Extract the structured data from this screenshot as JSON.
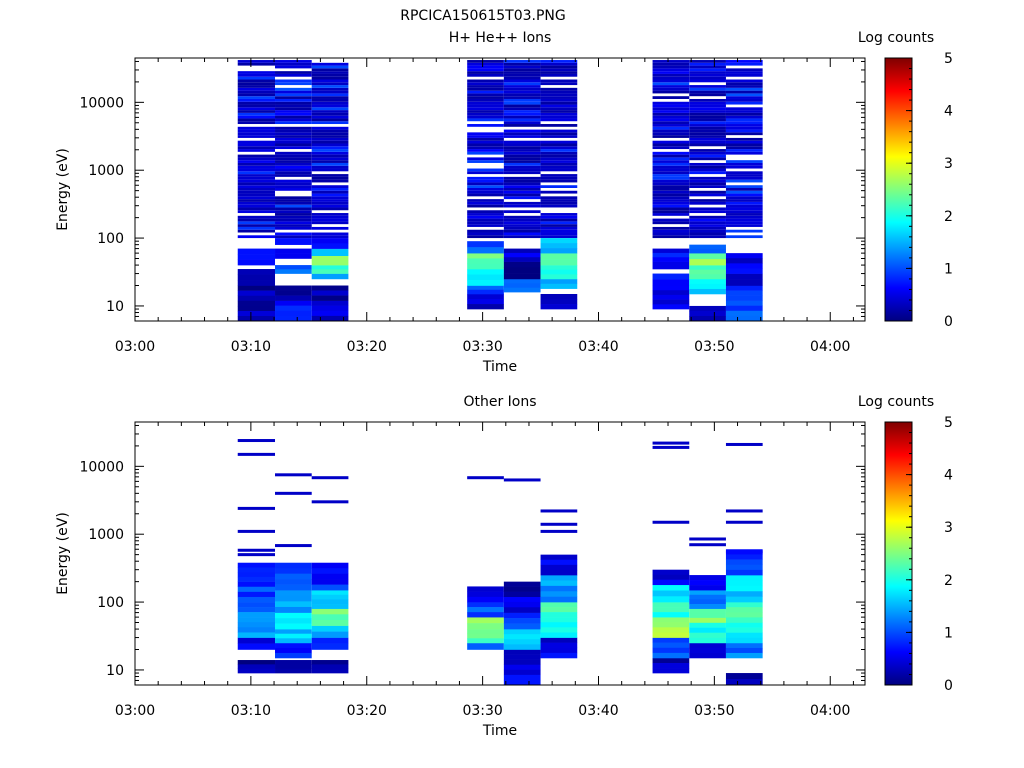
{
  "figure_title": "RPCICA150615T03.PNG",
  "chart_data": [
    {
      "type": "heatmap",
      "title": "H+ He++ Ions",
      "xlabel": "Time",
      "ylabel": "Energy (eV)",
      "yscale": "log",
      "ylim": [
        6,
        45000
      ],
      "xlim": [
        "03:00",
        "04:03"
      ],
      "x_ticks": [
        "03:00",
        "03:10",
        "03:20",
        "03:30",
        "03:40",
        "03:50",
        "04:00"
      ],
      "y_ticks": [
        "10",
        "100",
        "1000",
        "10000"
      ],
      "colorbar": {
        "label": "Log counts",
        "min": 0,
        "max": 5,
        "ticks": [
          "0",
          "1",
          "2",
          "3",
          "4",
          "5"
        ]
      },
      "columns": [
        {
          "t0": "03:08:52",
          "t1": "03:12:05",
          "e_min": 6,
          "e_max": 42000,
          "low": [
            [
              6,
              10,
              0.3
            ],
            [
              10,
              20,
              0.2
            ],
            [
              20,
              35,
              0.4
            ],
            [
              40,
              70,
              0.5
            ]
          ]
        },
        {
          "t0": "03:12:05",
          "t1": "03:15:15",
          "e_min": 6,
          "e_max": 42000,
          "low": [
            [
              6,
              12,
              0.6
            ],
            [
              12,
              20,
              0.2
            ],
            [
              30,
              40,
              1.2
            ],
            [
              50,
              70,
              0.7
            ],
            [
              80,
              100,
              0.6
            ]
          ]
        },
        {
          "t0": "03:15:15",
          "t1": "03:18:25",
          "e_min": 6,
          "e_max": 42000,
          "low": [
            [
              6,
              12,
              0.4
            ],
            [
              12,
              20,
              0.2
            ],
            [
              25,
              30,
              1.6
            ],
            [
              30,
              40,
              2.0
            ],
            [
              40,
              55,
              2.4
            ],
            [
              55,
              70,
              1.8
            ],
            [
              70,
              100,
              0.8
            ]
          ]
        },
        {
          "t0": "03:28:40",
          "t1": "03:31:50",
          "e_min": 9,
          "e_max": 42000,
          "low": [
            [
              9,
              15,
              0.4
            ],
            [
              15,
              20,
              1.0
            ],
            [
              20,
              35,
              2.0
            ],
            [
              35,
              60,
              2.4
            ],
            [
              60,
              90,
              1.0
            ]
          ]
        },
        {
          "t0": "03:31:50",
          "t1": "03:35:00",
          "e_min": 16,
          "e_max": 42000,
          "low": [
            [
              16,
              25,
              1.2
            ],
            [
              25,
              45,
              0.2
            ],
            [
              45,
              70,
              0.5
            ]
          ]
        },
        {
          "t0": "03:35:00",
          "t1": "03:38:10",
          "e_min": 9,
          "e_max": 42000,
          "low": [
            [
              9,
              15,
              0.3
            ],
            [
              18,
              25,
              1.4
            ],
            [
              25,
              40,
              2.1
            ],
            [
              40,
              60,
              2.5
            ],
            [
              60,
              100,
              1.6
            ]
          ]
        },
        {
          "t0": "03:44:40",
          "t1": "03:47:50",
          "e_min": 9,
          "e_max": 42000,
          "low": [
            [
              9,
              20,
              0.4
            ],
            [
              20,
              30,
              0.6
            ],
            [
              35,
              45,
              0.5
            ],
            [
              45,
              70,
              0.6
            ]
          ]
        },
        {
          "t0": "03:47:50",
          "t1": "03:51:00",
          "e_min": 6,
          "e_max": 42000,
          "low": [
            [
              6,
              10,
              0.3
            ],
            [
              15,
              25,
              1.8
            ],
            [
              25,
              40,
              2.3
            ],
            [
              40,
              60,
              2.5
            ],
            [
              60,
              80,
              1.2
            ]
          ]
        },
        {
          "t0": "03:51:00",
          "t1": "03:54:10",
          "e_min": 6,
          "e_max": 42000,
          "low": [
            [
              6,
              12,
              1.0
            ],
            [
              12,
              20,
              0.8
            ],
            [
              20,
              30,
              0.3
            ],
            [
              30,
              60,
              0.5
            ]
          ]
        }
      ]
    },
    {
      "type": "heatmap",
      "title": "Other Ions",
      "xlabel": "Time",
      "ylabel": "Energy (eV)",
      "yscale": "log",
      "ylim": [
        6,
        45000
      ],
      "xlim": [
        "03:00",
        "04:03"
      ],
      "x_ticks": [
        "03:00",
        "03:10",
        "03:20",
        "03:30",
        "03:40",
        "03:50",
        "04:00"
      ],
      "y_ticks": [
        "10",
        "100",
        "1000",
        "10000"
      ],
      "colorbar": {
        "label": "Log counts",
        "min": 0,
        "max": 5,
        "ticks": [
          "0",
          "1",
          "2",
          "3",
          "4",
          "5"
        ]
      },
      "columns": [
        {
          "t0": "03:08:52",
          "t1": "03:12:05",
          "e_min": 9,
          "e_max": 380,
          "lines": [
            24000,
            15000,
            2400,
            1100,
            580,
            500
          ],
          "low": [
            [
              9,
              14,
              0.2
            ],
            [
              20,
              30,
              0.6
            ],
            [
              30,
              60,
              1.5
            ],
            [
              60,
              100,
              1.2
            ],
            [
              100,
              200,
              0.9
            ],
            [
              200,
              380,
              0.6
            ]
          ]
        },
        {
          "t0": "03:12:05",
          "t1": "03:15:15",
          "e_min": 9,
          "e_max": 380,
          "lines": [
            7500,
            4000,
            680
          ],
          "low": [
            [
              9,
              14,
              0.4
            ],
            [
              15,
              25,
              0.7
            ],
            [
              25,
              40,
              1.6
            ],
            [
              40,
              70,
              2.0
            ],
            [
              70,
              150,
              1.5
            ],
            [
              150,
              380,
              0.9
            ]
          ]
        },
        {
          "t0": "03:15:15",
          "t1": "03:18:25",
          "e_min": 9,
          "e_max": 380,
          "lines": [
            6800,
            3000
          ],
          "low": [
            [
              9,
              14,
              0.3
            ],
            [
              20,
              30,
              0.6
            ],
            [
              30,
              45,
              1.6
            ],
            [
              45,
              80,
              2.4
            ],
            [
              80,
              150,
              1.6
            ],
            [
              150,
              380,
              0.8
            ]
          ]
        },
        {
          "t0": "03:28:40",
          "t1": "03:31:50",
          "e_min": 20,
          "e_max": 170,
          "lines": [
            6800
          ],
          "low": [
            [
              20,
              25,
              1.3
            ],
            [
              25,
              40,
              2.3
            ],
            [
              40,
              60,
              2.6
            ],
            [
              60,
              100,
              1.1
            ],
            [
              100,
              170,
              0.4
            ]
          ]
        },
        {
          "t0": "03:31:50",
          "t1": "03:35:00",
          "e_min": 6,
          "e_max": 200,
          "lines": [
            6300
          ],
          "low": [
            [
              6,
              20,
              0.5
            ],
            [
              20,
              40,
              1.6
            ],
            [
              40,
              70,
              0.9
            ],
            [
              70,
              120,
              0.4
            ],
            [
              120,
              200,
              0.3
            ]
          ]
        },
        {
          "t0": "03:35:00",
          "t1": "03:38:10",
          "e_min": 15,
          "e_max": 500,
          "lines": [
            2200,
            1400,
            1100
          ],
          "low": [
            [
              15,
              30,
              0.5
            ],
            [
              30,
              60,
              1.8
            ],
            [
              60,
              100,
              2.2
            ],
            [
              100,
              250,
              1.4
            ],
            [
              250,
              500,
              0.6
            ]
          ]
        },
        {
          "t0": "03:44:40",
          "t1": "03:47:50",
          "e_min": 9,
          "e_max": 300,
          "lines": [
            22000,
            19000,
            1500
          ],
          "low": [
            [
              9,
              15,
              0.3
            ],
            [
              15,
              30,
              1.0
            ],
            [
              30,
              60,
              2.6
            ],
            [
              60,
              100,
              2.0
            ],
            [
              100,
              180,
              1.7
            ],
            [
              180,
              300,
              0.5
            ]
          ]
        },
        {
          "t0": "03:47:50",
          "t1": "03:51:00",
          "e_min": 15,
          "e_max": 250,
          "lines": [
            850,
            700
          ],
          "low": [
            [
              15,
              25,
              0.6
            ],
            [
              25,
              50,
              1.9
            ],
            [
              50,
              80,
              2.4
            ],
            [
              80,
              150,
              1.3
            ],
            [
              150,
              250,
              0.6
            ]
          ]
        },
        {
          "t0": "03:51:00",
          "t1": "03:54:10",
          "e_min": 6,
          "e_max": 600,
          "lines": [
            21000,
            2200,
            1500,
            550
          ],
          "low": [
            [
              6,
              9,
              0.3
            ],
            [
              15,
              25,
              1.2
            ],
            [
              25,
              50,
              1.9
            ],
            [
              50,
              100,
              2.3
            ],
            [
              100,
              250,
              1.7
            ],
            [
              250,
              600,
              0.8
            ]
          ]
        }
      ]
    }
  ]
}
